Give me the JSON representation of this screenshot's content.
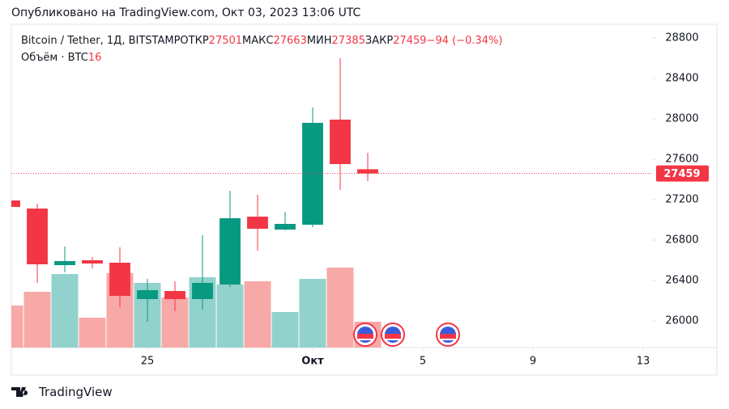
{
  "header": {
    "published": "Опубликовано на TradingView.com, Окт 03, 2023 13:06 UTC"
  },
  "chart_data": {
    "type": "candlestick",
    "title": "Bitcoin / Tether, 1Д, BITSTAMP",
    "ohlc_labels": [
      "ОТКР",
      "МАКС",
      "МИН",
      "ЗАКР"
    ],
    "change_label": "−94 (−0.34%)",
    "volume_label": "Объём · BTC",
    "x": [
      "2023-09-20",
      "2023-09-21",
      "2023-09-22",
      "2023-09-23",
      "2023-09-24",
      "2023-09-25",
      "2023-09-26",
      "2023-09-27",
      "2023-09-28",
      "2023-09-29",
      "2023-09-30",
      "2023-10-01",
      "2023-10-02",
      "2023-10-03"
    ],
    "open": [
      27192,
      27112,
      26552,
      26600,
      26576,
      26216,
      26296,
      26216,
      26360,
      27032,
      26904,
      26952,
      27992,
      27501
    ],
    "high": [
      27230,
      27160,
      26736,
      26632,
      26728,
      26416,
      26392,
      26848,
      27288,
      27248,
      27080,
      28112,
      28600,
      27663
    ],
    "low": [
      27100,
      26376,
      26480,
      26520,
      26136,
      25992,
      26096,
      26112,
      26336,
      26696,
      26896,
      26928,
      27296,
      27385
    ],
    "close": [
      27128,
      26560,
      26592,
      26568,
      26248,
      26304,
      26216,
      26376,
      27016,
      26912,
      26960,
      27960,
      27552,
      27459
    ],
    "volume": [
      26,
      34.5,
      45.5,
      18.5,
      46,
      40,
      31,
      43.5,
      39,
      41,
      22,
      42.5,
      49.5,
      16
    ],
    "up_color": "#089981",
    "down_color": "#f23645",
    "volume_up_color": "#92d2cc",
    "volume_down_color": "#f7a9a7",
    "ylim": [
      25736,
      28936
    ],
    "yticks": [
      26000,
      26400,
      26800,
      27200,
      27600,
      28000,
      28400,
      28800
    ],
    "xlim": [
      "2023-09-20",
      "2023-10-14"
    ],
    "xticks": [
      {
        "value": "2023-09-25",
        "label": "25"
      },
      {
        "value": "2023-10-01",
        "label": "Окт"
      },
      {
        "value": "2023-10-05",
        "label": "5"
      },
      {
        "value": "2023-10-09",
        "label": "9"
      },
      {
        "value": "2023-10-13",
        "label": "13"
      }
    ]
  },
  "footer": {
    "logo": "TradingView"
  }
}
